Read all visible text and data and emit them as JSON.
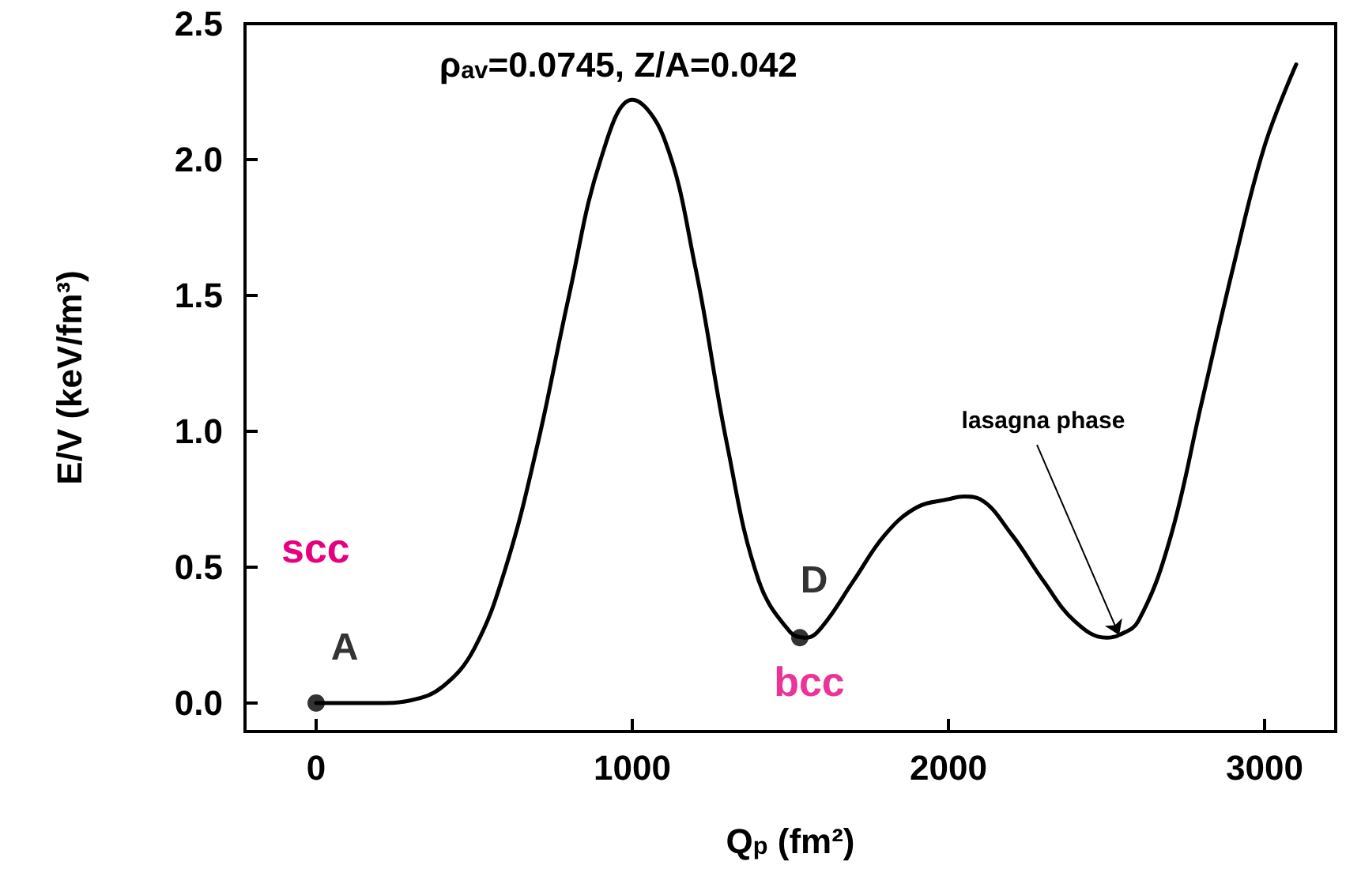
{
  "chart_data": {
    "type": "line",
    "xlabel": "Q$_{p}$ (fm²)",
    "ylabel": "E/V (keV/fm³)",
    "xlim": [
      -225,
      3225
    ],
    "ylim": [
      -0.105,
      2.5
    ],
    "xticks": [
      0,
      1000,
      2000,
      3000
    ],
    "yticks": [
      {
        "value": 0,
        "label": "0.0"
      },
      {
        "value": 0.5,
        "label": "0.5"
      },
      {
        "value": 1,
        "label": "1.0"
      },
      {
        "value": 1.5,
        "label": "1.5"
      },
      {
        "value": 2,
        "label": "2.0"
      },
      {
        "value": 2.5,
        "label": "2.5"
      }
    ],
    "grid": false,
    "marker": "none",
    "line_style": "solid",
    "series": [
      {
        "color": "#000000",
        "x": [
          0,
          100,
          200,
          300,
          400,
          500,
          600,
          700,
          800,
          900,
          1000,
          1100,
          1200,
          1300,
          1400,
          1500,
          1550,
          1600,
          1700,
          1800,
          1900,
          2000,
          2050,
          2100,
          2200,
          2300,
          2400,
          2500,
          2540,
          2600,
          2700,
          2800,
          2900,
          3000,
          3100
        ],
        "values": [
          0,
          0,
          0,
          0.01,
          0.06,
          0.2,
          0.5,
          0.95,
          1.5,
          2.0,
          2.22,
          2.08,
          1.6,
          0.95,
          0.45,
          0.26,
          0.24,
          0.28,
          0.45,
          0.62,
          0.72,
          0.75,
          0.76,
          0.75,
          0.62,
          0.45,
          0.3,
          0.24,
          0.25,
          0.3,
          0.6,
          1.1,
          1.6,
          2.05,
          2.35
        ]
      },
      {
        "type": "scatter",
        "marker": "circle",
        "color": "#000000",
        "x": [
          0,
          1530
        ],
        "values": [
          0,
          0.24
        ]
      }
    ],
    "annotations": [
      "ρ$_{av}$=0.0745, Z/A=0.042",
      {
        "text": "A",
        "x": 0,
        "y": 0
      },
      {
        "text": "D",
        "x": 1530,
        "y": 0.24
      },
      "scc",
      {
        "text": "bcc",
        "x": 1530,
        "y": 0.24
      },
      {
        "text": "lasagna phase",
        "x": 2540,
        "y": 0.25
      }
    ]
  }
}
